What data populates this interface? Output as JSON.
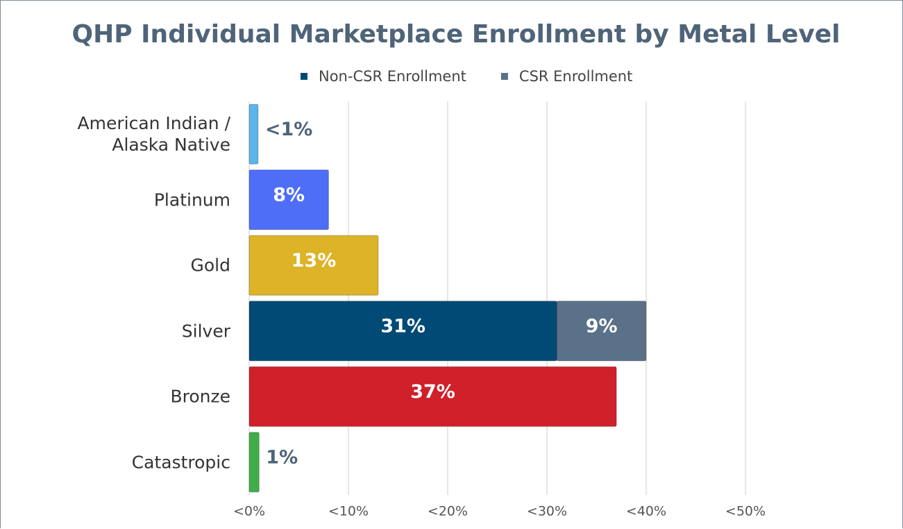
{
  "chart_data": {
    "type": "stacked-barh",
    "title": "QHP Individual Marketplace Enrollment by Metal Level",
    "categories": [
      "American Indian / Alaska Native",
      "Platinum",
      "Gold",
      "Silver",
      "Bronze",
      "Catastropic"
    ],
    "series": [
      {
        "name": "Non-CSR Enrollment",
        "color": "#004a75",
        "colors": [
          "#5bb5e8",
          "#4f6ef7",
          "#ddb327",
          "#004a75",
          "#d0202a",
          "#3fae49"
        ],
        "values": [
          0.9,
          8,
          13,
          31,
          37,
          1
        ],
        "value_labels": [
          "<1%",
          "8%",
          "13%",
          "31%",
          "37%",
          "1%"
        ]
      },
      {
        "name": "CSR Enrollment",
        "color": "#5a7189",
        "values": [
          null,
          null,
          null,
          9,
          null,
          null
        ],
        "value_labels": [
          null,
          null,
          null,
          "9%",
          null,
          null
        ]
      }
    ],
    "xlim": [
      0,
      50
    ],
    "xticks": [
      {
        "value": 0,
        "label": "<0%"
      },
      {
        "value": 10,
        "label": "<10%"
      },
      {
        "value": 20,
        "label": "<20%"
      },
      {
        "value": 30,
        "label": "<30%"
      },
      {
        "value": 40,
        "label": "<40%"
      },
      {
        "value": 50,
        "label": "<50%"
      }
    ],
    "grid": true
  }
}
